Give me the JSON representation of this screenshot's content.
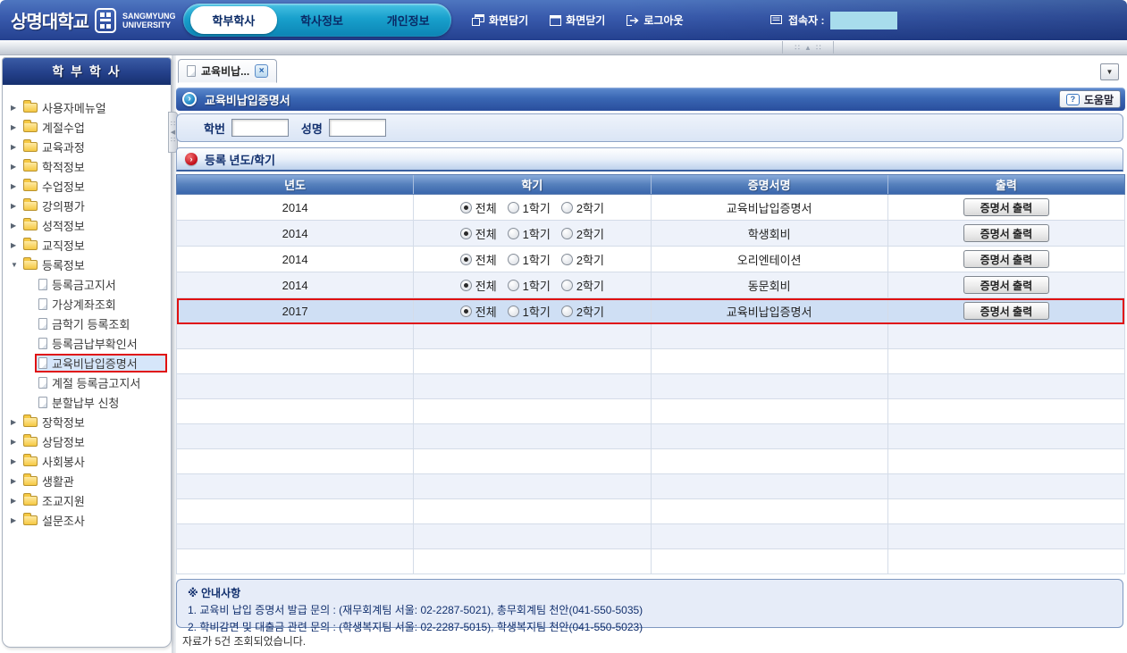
{
  "colors": {
    "header_blue": "#2c4f9e",
    "tab_pill_cyan": "#18a0cc",
    "title_bar_blue": "#3a67b4",
    "highlight_red": "#e01111",
    "selected_row_bg": "#cfdff4",
    "alt_row_bg": "#eef2fa",
    "connected_user_box": "#a8dcec"
  },
  "header": {
    "logo": {
      "korean": "상명대학교",
      "english_line1": "SANGMYUNG",
      "english_line2": "UNIVERSITY"
    },
    "tabs": [
      {
        "label": "학부학사",
        "active": true
      },
      {
        "label": "학사정보",
        "active": false
      },
      {
        "label": "개인정보",
        "active": false
      }
    ],
    "actions": [
      {
        "label": "화면담기",
        "icon": "screen-dock-icon"
      },
      {
        "label": "화면닫기",
        "icon": "screen-close-icon"
      },
      {
        "label": "로그아웃",
        "icon": "logout-icon"
      }
    ],
    "connected_user_label": "접속자 :"
  },
  "sidebar": {
    "title": "학 부 학 사",
    "items": [
      {
        "type": "folder",
        "label": "사용자메뉴얼",
        "expanded": false
      },
      {
        "type": "folder",
        "label": "계절수업",
        "expanded": false
      },
      {
        "type": "folder",
        "label": "교육과정",
        "expanded": false
      },
      {
        "type": "folder",
        "label": "학적정보",
        "expanded": false
      },
      {
        "type": "folder",
        "label": "수업정보",
        "expanded": false
      },
      {
        "type": "folder",
        "label": "강의평가",
        "expanded": false
      },
      {
        "type": "folder",
        "label": "성적정보",
        "expanded": false
      },
      {
        "type": "folder",
        "label": "교직정보",
        "expanded": false
      },
      {
        "type": "folder",
        "label": "등록정보",
        "expanded": true,
        "children": [
          {
            "label": "등록금고지서",
            "selected": false
          },
          {
            "label": "가상계좌조회",
            "selected": false
          },
          {
            "label": "금학기 등록조회",
            "selected": false
          },
          {
            "label": "등록금납부확인서",
            "selected": false
          },
          {
            "label": "교육비납입증명서",
            "selected": true
          },
          {
            "label": "계절 등록금고지서",
            "selected": false
          },
          {
            "label": "분할납부 신청",
            "selected": false
          }
        ]
      },
      {
        "type": "folder",
        "label": "장학정보",
        "expanded": false
      },
      {
        "type": "folder",
        "label": "상담정보",
        "expanded": false
      },
      {
        "type": "folder",
        "label": "사회봉사",
        "expanded": false
      },
      {
        "type": "folder",
        "label": "생활관",
        "expanded": false
      },
      {
        "type": "folder",
        "label": "조교지원",
        "expanded": false
      },
      {
        "type": "folder",
        "label": "설문조사",
        "expanded": false
      }
    ]
  },
  "main": {
    "tab_label": "교육비납...",
    "page_title": "교육비납입증명서",
    "help_label": "도움말",
    "filter": {
      "student_id_label": "학번",
      "student_id_value": "",
      "name_label": "성명",
      "name_value": ""
    },
    "section_title": "등록 년도/학기",
    "table": {
      "columns": [
        "년도",
        "학기",
        "증명서명",
        "출력"
      ],
      "semester_options": [
        "전체",
        "1학기",
        "2학기"
      ],
      "print_button_label": "증명서 출력",
      "rows": [
        {
          "year": "2014",
          "selected_semester": "전체",
          "certificate": "교육비납입증명서",
          "highlighted": false
        },
        {
          "year": "2014",
          "selected_semester": "전체",
          "certificate": "학생회비",
          "highlighted": false
        },
        {
          "year": "2014",
          "selected_semester": "전체",
          "certificate": "오리엔테이션",
          "highlighted": false
        },
        {
          "year": "2014",
          "selected_semester": "전체",
          "certificate": "동문회비",
          "highlighted": false
        },
        {
          "year": "2017",
          "selected_semester": "전체",
          "certificate": "교육비납입증명서",
          "highlighted": true
        }
      ],
      "empty_row_count": 10
    },
    "notice": {
      "title": "※ 안내사항",
      "lines": [
        "1. 교육비 납입 증명서 발급 문의 : (재무회계팀 서울: 02-2287-5021), 총무회계팀 천안(041-550-5035)",
        "2. 학비감면 및 대출금 관련 문의 : (학생복지팀 서울: 02-2287-5015), 학생복지팀 천안(041-550-5023)"
      ]
    },
    "status_text": "자료가 5건 조회되었습니다."
  }
}
